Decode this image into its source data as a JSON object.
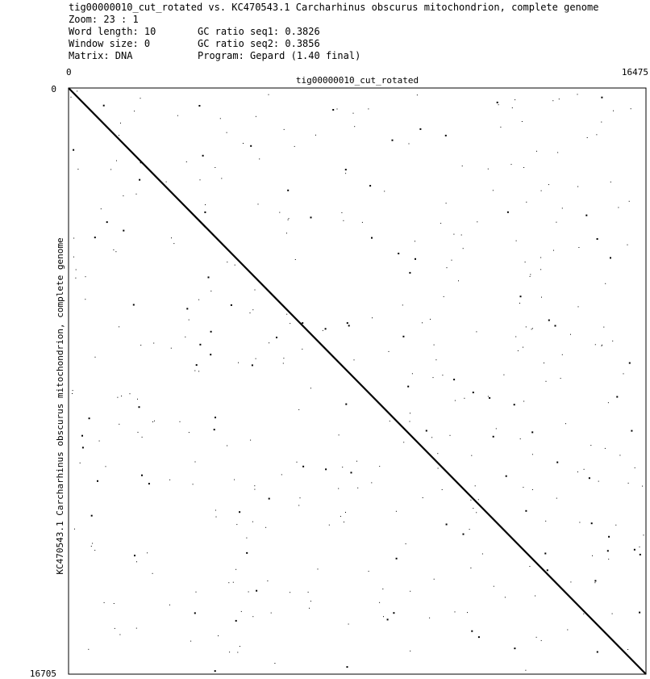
{
  "header": {
    "title": "tig00000010_cut_rotated vs. KC470543.1 Carcharhinus obscurus mitochondrion, complete genome",
    "zoom": "Zoom: 23 : 1",
    "word_length": "Word length: 10",
    "window_size": "Window size: 0",
    "matrix": "Matrix: DNA",
    "gc_seq1": "GC ratio seq1: 0.3826",
    "gc_seq2": "GC ratio seq2: 0.3856",
    "program": "Program: Gepard (1.40 final)"
  },
  "chart_data": {
    "type": "scatter",
    "subtype": "dotplot",
    "xlabel": "tig00000010_cut_rotated",
    "ylabel": "KC470543.1 Carcharhinus obscurus mitochondrion, complete genome",
    "x_range": [
      0,
      16475
    ],
    "y_range": [
      0,
      16705
    ],
    "y_inverted": true,
    "x_tick_labels": [
      "0",
      "16475"
    ],
    "y_tick_labels": [
      "0",
      "16705"
    ],
    "grid": false,
    "series": [
      {
        "kind": "main-diagonal",
        "x": [
          0,
          16475
        ],
        "y": [
          0,
          16705
        ],
        "color": "#000000"
      }
    ],
    "noise_dot_color": "#000000",
    "noise_dot_count": 420
  }
}
